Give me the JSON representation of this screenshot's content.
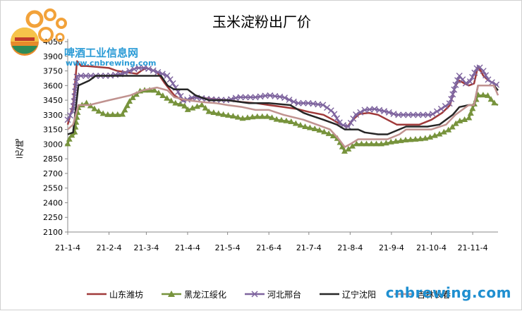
{
  "chart_data": {
    "type": "line",
    "title": "玉米淀粉出厂价",
    "ylabel": "元/吨",
    "xlabel": "",
    "ylim": [
      2100,
      4050
    ],
    "yticks": [
      2100,
      2250,
      2400,
      2550,
      2700,
      2850,
      3000,
      3150,
      3300,
      3450,
      3600,
      3750,
      3900,
      4050
    ],
    "xticks": [
      "21-1-4",
      "21-2-4",
      "21-3-4",
      "21-4-4",
      "21-5-4",
      "21-6-4",
      "21-7-4",
      "21-8-4",
      "21-9-4",
      "21-10-4",
      "21-11-4"
    ],
    "x_start": "21-1-4",
    "x_end": "21-11-23",
    "legend_position": "bottom",
    "grid": false,
    "series": [
      {
        "name": "山东潍坊",
        "color": "#a03a3a",
        "marker": "none",
        "points": [
          [
            "21-1-4",
            3200
          ],
          [
            "21-1-8",
            3400
          ],
          [
            "21-1-11",
            3850
          ],
          [
            "21-1-14",
            3800
          ],
          [
            "21-1-18",
            3800
          ],
          [
            "21-2-4",
            3780
          ],
          [
            "21-2-10",
            3750
          ],
          [
            "21-2-25",
            3720
          ],
          [
            "21-3-1",
            3760
          ],
          [
            "21-3-4",
            3780
          ],
          [
            "21-3-12",
            3740
          ],
          [
            "21-3-18",
            3620
          ],
          [
            "21-3-25",
            3500
          ],
          [
            "21-4-1",
            3440
          ],
          [
            "21-4-10",
            3480
          ],
          [
            "21-4-25",
            3460
          ],
          [
            "21-5-4",
            3450
          ],
          [
            "21-5-15",
            3430
          ],
          [
            "21-5-25",
            3420
          ],
          [
            "21-6-4",
            3400
          ],
          [
            "21-6-15",
            3380
          ],
          [
            "21-6-25",
            3360
          ],
          [
            "21-7-4",
            3330
          ],
          [
            "21-7-15",
            3300
          ],
          [
            "21-7-22",
            3250
          ],
          [
            "21-7-28",
            3200
          ],
          [
            "21-8-2",
            3180
          ],
          [
            "21-8-6",
            3250
          ],
          [
            "21-8-11",
            3310
          ],
          [
            "21-8-18",
            3320
          ],
          [
            "21-8-25",
            3300
          ],
          [
            "21-9-1",
            3250
          ],
          [
            "21-9-8",
            3200
          ],
          [
            "21-9-15",
            3200
          ],
          [
            "21-9-25",
            3200
          ],
          [
            "21-10-4",
            3250
          ],
          [
            "21-10-12",
            3320
          ],
          [
            "21-10-18",
            3400
          ],
          [
            "21-10-22",
            3600
          ],
          [
            "21-10-25",
            3650
          ],
          [
            "21-10-29",
            3620
          ],
          [
            "21-11-1",
            3600
          ],
          [
            "21-11-5",
            3620
          ],
          [
            "21-11-8",
            3800
          ],
          [
            "21-11-12",
            3700
          ],
          [
            "21-11-16",
            3650
          ],
          [
            "21-11-23",
            3600
          ]
        ]
      },
      {
        "name": "黑龙江绥化",
        "color": "#77933c",
        "marker": "triangle",
        "points": [
          [
            "21-1-4",
            3000
          ],
          [
            "21-1-6",
            3080
          ],
          [
            "21-1-9",
            3100
          ],
          [
            "21-1-12",
            3380
          ],
          [
            "21-1-18",
            3420
          ],
          [
            "21-1-25",
            3350
          ],
          [
            "21-2-1",
            3300
          ],
          [
            "21-2-14",
            3300
          ],
          [
            "21-2-20",
            3450
          ],
          [
            "21-2-28",
            3550
          ],
          [
            "21-3-10",
            3550
          ],
          [
            "21-3-18",
            3480
          ],
          [
            "21-3-25",
            3420
          ],
          [
            "21-4-1",
            3400
          ],
          [
            "21-4-4",
            3350
          ],
          [
            "21-4-15",
            3400
          ],
          [
            "21-4-20",
            3330
          ],
          [
            "21-5-1",
            3300
          ],
          [
            "21-5-10",
            3280
          ],
          [
            "21-5-15",
            3260
          ],
          [
            "21-5-25",
            3280
          ],
          [
            "21-6-4",
            3280
          ],
          [
            "21-6-10",
            3250
          ],
          [
            "21-6-20",
            3230
          ],
          [
            "21-6-30",
            3180
          ],
          [
            "21-7-10",
            3150
          ],
          [
            "21-7-20",
            3100
          ],
          [
            "21-7-26",
            3050
          ],
          [
            "21-7-31",
            2920
          ],
          [
            "21-8-4",
            2960
          ],
          [
            "21-8-8",
            3000
          ],
          [
            "21-8-20",
            3000
          ],
          [
            "21-8-28",
            3000
          ],
          [
            "21-9-4",
            3020
          ],
          [
            "21-9-15",
            3040
          ],
          [
            "21-9-25",
            3050
          ],
          [
            "21-10-1",
            3060
          ],
          [
            "21-10-10",
            3100
          ],
          [
            "21-10-18",
            3150
          ],
          [
            "21-10-24",
            3230
          ],
          [
            "21-11-1",
            3260
          ],
          [
            "21-11-5",
            3400
          ],
          [
            "21-11-8",
            3500
          ],
          [
            "21-11-15",
            3500
          ],
          [
            "21-11-20",
            3420
          ],
          [
            "21-11-23",
            3400
          ]
        ]
      },
      {
        "name": "河北邢台",
        "color": "#7e649e",
        "marker": "x",
        "points": [
          [
            "21-1-4",
            3250
          ],
          [
            "21-1-8",
            3350
          ],
          [
            "21-1-11",
            3700
          ],
          [
            "21-1-20",
            3700
          ],
          [
            "21-2-4",
            3700
          ],
          [
            "21-2-14",
            3720
          ],
          [
            "21-2-25",
            3780
          ],
          [
            "21-3-4",
            3780
          ],
          [
            "21-3-12",
            3740
          ],
          [
            "21-3-20",
            3700
          ],
          [
            "21-3-25",
            3600
          ],
          [
            "21-4-1",
            3440
          ],
          [
            "21-4-8",
            3480
          ],
          [
            "21-4-20",
            3460
          ],
          [
            "21-5-4",
            3450
          ],
          [
            "21-5-12",
            3480
          ],
          [
            "21-5-25",
            3480
          ],
          [
            "21-6-4",
            3500
          ],
          [
            "21-6-15",
            3480
          ],
          [
            "21-6-25",
            3420
          ],
          [
            "21-7-4",
            3420
          ],
          [
            "21-7-15",
            3400
          ],
          [
            "21-7-22",
            3330
          ],
          [
            "21-7-28",
            3200
          ],
          [
            "21-8-3",
            3180
          ],
          [
            "21-8-8",
            3300
          ],
          [
            "21-8-15",
            3350
          ],
          [
            "21-8-22",
            3360
          ],
          [
            "21-9-1",
            3330
          ],
          [
            "21-9-8",
            3300
          ],
          [
            "21-9-20",
            3300
          ],
          [
            "21-10-4",
            3300
          ],
          [
            "21-10-10",
            3350
          ],
          [
            "21-10-18",
            3420
          ],
          [
            "21-10-22",
            3600
          ],
          [
            "21-10-25",
            3700
          ],
          [
            "21-10-30",
            3620
          ],
          [
            "21-11-2",
            3640
          ],
          [
            "21-11-8",
            3800
          ],
          [
            "21-11-12",
            3750
          ],
          [
            "21-11-16",
            3650
          ],
          [
            "21-11-20",
            3620
          ],
          [
            "21-11-23",
            3600
          ]
        ]
      },
      {
        "name": "辽宁沈阳",
        "color": "#262626",
        "marker": "none",
        "points": [
          [
            "21-1-4",
            3100
          ],
          [
            "21-1-8",
            3120
          ],
          [
            "21-1-12",
            3600
          ],
          [
            "21-1-20",
            3650
          ],
          [
            "21-1-25",
            3700
          ],
          [
            "21-2-4",
            3700
          ],
          [
            "21-3-4",
            3700
          ],
          [
            "21-3-15",
            3700
          ],
          [
            "21-3-20",
            3600
          ],
          [
            "21-3-25",
            3560
          ],
          [
            "21-4-4",
            3560
          ],
          [
            "21-4-10",
            3500
          ],
          [
            "21-4-20",
            3450
          ],
          [
            "21-5-4",
            3450
          ],
          [
            "21-5-20",
            3420
          ],
          [
            "21-6-4",
            3420
          ],
          [
            "21-6-20",
            3400
          ],
          [
            "21-6-30",
            3320
          ],
          [
            "21-7-4",
            3300
          ],
          [
            "21-7-15",
            3250
          ],
          [
            "21-7-25",
            3200
          ],
          [
            "21-7-31",
            3150
          ],
          [
            "21-8-10",
            3150
          ],
          [
            "21-8-15",
            3120
          ],
          [
            "21-8-25",
            3100
          ],
          [
            "21-9-1",
            3100
          ],
          [
            "21-9-15",
            3180
          ],
          [
            "21-10-1",
            3180
          ],
          [
            "21-10-10",
            3200
          ],
          [
            "21-10-20",
            3300
          ],
          [
            "21-10-25",
            3380
          ],
          [
            "21-11-1",
            3400
          ],
          [
            "21-11-5",
            3400
          ],
          [
            "21-11-8",
            3600
          ],
          [
            "21-11-20",
            3600
          ],
          [
            "21-11-23",
            3550
          ]
        ]
      },
      {
        "name": "吉林长春",
        "color": "#c0928f",
        "marker": "none",
        "points": [
          [
            "21-1-4",
            3150
          ],
          [
            "21-1-8",
            3200
          ],
          [
            "21-1-12",
            3400
          ],
          [
            "21-1-20",
            3400
          ],
          [
            "21-2-4",
            3450
          ],
          [
            "21-2-20",
            3500
          ],
          [
            "21-3-1",
            3550
          ],
          [
            "21-3-12",
            3580
          ],
          [
            "21-3-20",
            3550
          ],
          [
            "21-3-25",
            3480
          ],
          [
            "21-4-4",
            3450
          ],
          [
            "21-4-15",
            3430
          ],
          [
            "21-4-25",
            3420
          ],
          [
            "21-5-4",
            3400
          ],
          [
            "21-5-15",
            3380
          ],
          [
            "21-5-25",
            3350
          ],
          [
            "21-6-4",
            3350
          ],
          [
            "21-6-15",
            3300
          ],
          [
            "21-6-30",
            3250
          ],
          [
            "21-7-10",
            3200
          ],
          [
            "21-7-20",
            3150
          ],
          [
            "21-7-26",
            3060
          ],
          [
            "21-7-31",
            2970
          ],
          [
            "21-8-4",
            3000
          ],
          [
            "21-8-10",
            3050
          ],
          [
            "21-8-20",
            3050
          ],
          [
            "21-9-1",
            3050
          ],
          [
            "21-9-10",
            3100
          ],
          [
            "21-9-15",
            3150
          ],
          [
            "21-9-25",
            3150
          ],
          [
            "21-10-4",
            3150
          ],
          [
            "21-10-15",
            3200
          ],
          [
            "21-10-22",
            3300
          ],
          [
            "21-11-1",
            3400
          ],
          [
            "21-11-5",
            3400
          ],
          [
            "21-11-8",
            3600
          ],
          [
            "21-11-20",
            3600
          ],
          [
            "21-11-23",
            3500
          ]
        ]
      }
    ]
  },
  "logo": {
    "name": "啤酒工业信息网",
    "url": "www.cnbrewing.com"
  },
  "watermark": "cnbrewing.com"
}
